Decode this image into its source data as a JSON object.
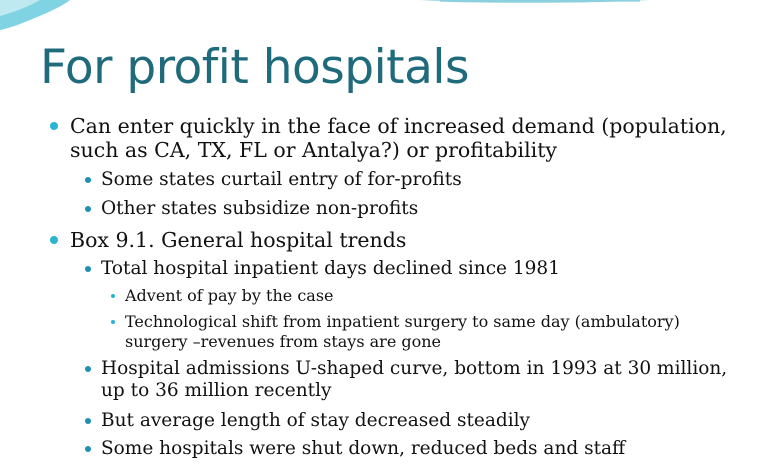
{
  "slide": {
    "title": "For profit hospitals",
    "bullets": {
      "b1": "Can enter quickly in the face of increased demand (population,\nsuch as CA, TX, FL or Antalya?) or profitability",
      "b1_1": "Some states curtail entry of for-profits",
      "b1_2": "Other states subsidize non-profits",
      "b2": "Box 9.1.  General hospital trends",
      "b2_1": "Total hospital inpatient days declined since 1981",
      "b2_1_1": "Advent of pay by the case",
      "b2_1_2": "Technological shift from inpatient surgery to same day (ambulatory)\nsurgery –revenues from stays are gone",
      "b2_2": "Hospital admissions U-shaped curve, bottom in 1993 at 30 million,\nup to 36 million recently",
      "b2_3": "But average length of stay decreased steadily",
      "b2_4": "Some hospitals were shut down, reduced beds and staff"
    }
  },
  "colors": {
    "title": "#1f6b7c",
    "bullet_primary": "#2bb3cf",
    "bullet_secondary": "#1d8fb0",
    "body_text": "#111111"
  }
}
